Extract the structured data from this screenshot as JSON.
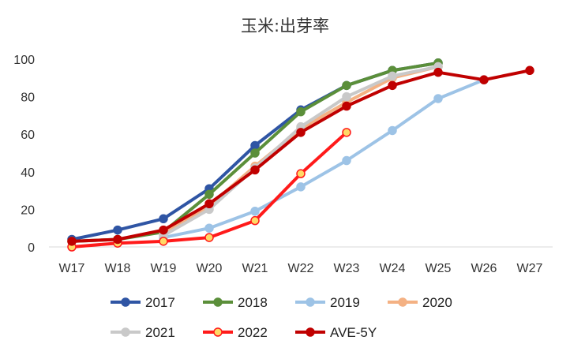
{
  "chart_data": {
    "type": "line",
    "title": "玉米:出芽率",
    "xlabel": "",
    "ylabel": "",
    "categories": [
      "W17",
      "W18",
      "W19",
      "W20",
      "W21",
      "W22",
      "W23",
      "W24",
      "W25",
      "W26",
      "W27"
    ],
    "ylim": [
      0,
      100
    ],
    "yticks": [
      0,
      20,
      40,
      60,
      80,
      100
    ],
    "grid": false,
    "legend_position": "bottom",
    "series": [
      {
        "name": "2017",
        "color": "#2f55a4",
        "values": [
          4,
          9,
          15,
          31,
          54,
          73,
          86,
          94,
          98,
          null,
          null
        ]
      },
      {
        "name": "2018",
        "color": "#5b8f3a",
        "values": [
          3,
          4,
          8,
          28,
          50,
          72,
          86,
          94,
          98,
          null,
          null
        ]
      },
      {
        "name": "2019",
        "color": "#9dc3e6",
        "values": [
          null,
          null,
          5,
          10,
          19,
          32,
          46,
          62,
          79,
          89,
          null
        ]
      },
      {
        "name": "2020",
        "color": "#f4b183",
        "values": [
          null,
          null,
          7,
          22,
          43,
          63,
          77,
          90,
          96,
          null,
          null
        ]
      },
      {
        "name": "2021",
        "color": "#c9c9c9",
        "values": [
          null,
          null,
          6,
          20,
          42,
          64,
          80,
          91,
          96,
          null,
          null
        ]
      },
      {
        "name": "2022",
        "color": "#ff1a1a",
        "marker_fill": "#ffd966",
        "values": [
          0,
          2,
          3,
          5,
          14,
          39,
          61,
          null,
          null,
          null,
          null
        ]
      },
      {
        "name": "AVE-5Y",
        "color": "#c00000",
        "values": [
          3,
          4,
          9,
          23,
          41,
          61,
          75,
          86,
          93,
          89,
          94
        ]
      }
    ]
  }
}
